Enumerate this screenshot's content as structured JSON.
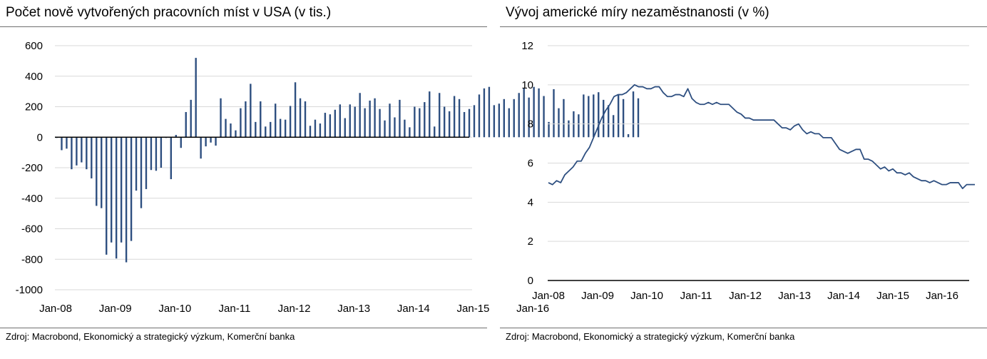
{
  "left_panel": {
    "title": "Počet nově vytvořených pracovních míst v USA (v tis.)",
    "source": "Zdroj: Macrobond, Ekonomický a strategický výzkum, Komerční banka"
  },
  "right_panel": {
    "title": "Vývoj americké míry nezaměstnanosti (v %)",
    "source": "Zdroj: Macrobond, Ekonomický a strategický výzkum, Komerční banka"
  },
  "colors": {
    "series": "#2e4f80",
    "grid": "#d9d9d9",
    "axis": "#000000",
    "rule": "#6f6f6f"
  },
  "chart_data": [
    {
      "type": "bar",
      "title": "Počet nově vytvořených pracovních míst v USA (v tis.)",
      "xlabel": "",
      "ylabel": "",
      "ylim": [
        -1000,
        600
      ],
      "yticks": [
        600,
        400,
        200,
        0,
        -200,
        -400,
        -600,
        -800,
        -1000
      ],
      "ytick_labels": [
        "600",
        "400",
        "200",
        "0",
        "-200",
        "-400",
        "-600",
        "-800",
        "-1000"
      ],
      "xticks": [
        "Jan-08",
        "Jan-09",
        "Jan-10",
        "Jan-11",
        "Jan-12",
        "Jan-13",
        "Jan-14",
        "Jan-15",
        "Jan-16"
      ],
      "grid": true,
      "frequency": "monthly",
      "start": "Jan-08",
      "values": [
        -5,
        -85,
        -75,
        -210,
        -185,
        -165,
        -210,
        -270,
        -450,
        -465,
        -770,
        -690,
        -795,
        -690,
        -820,
        -680,
        -350,
        -465,
        -340,
        -215,
        -220,
        -200,
        -5,
        -275,
        15,
        -70,
        165,
        245,
        520,
        -140,
        -60,
        -35,
        -55,
        255,
        120,
        90,
        45,
        190,
        235,
        350,
        100,
        235,
        70,
        100,
        220,
        120,
        115,
        205,
        360,
        255,
        235,
        75,
        115,
        90,
        160,
        150,
        180,
        215,
        125,
        215,
        200,
        290,
        190,
        240,
        255,
        185,
        110,
        220,
        130,
        245,
        115,
        65,
        200,
        190,
        230,
        300,
        70,
        290,
        200,
        170,
        270,
        250,
        165,
        185,
        210,
        280,
        320,
        330,
        210,
        220,
        250,
        190,
        250,
        290,
        320,
        260,
        330,
        320,
        270,
        100,
        315,
        190,
        250,
        110,
        170,
        150,
        280,
        270,
        280,
        295,
        245,
        210,
        145,
        275,
        250,
        20,
        300,
        255
      ]
    },
    {
      "type": "line",
      "title": "Vývoj americké míry nezaměstnanosti (v %)",
      "xlabel": "",
      "ylabel": "",
      "ylim": [
        0,
        12
      ],
      "yticks": [
        12,
        10,
        8,
        6,
        4,
        2,
        0
      ],
      "ytick_labels": [
        "12",
        "10",
        "8",
        "6",
        "4",
        "2",
        "0"
      ],
      "xticks": [
        "Jan-08",
        "Jan-09",
        "Jan-10",
        "Jan-11",
        "Jan-12",
        "Jan-13",
        "Jan-14",
        "Jan-15",
        "Jan-16"
      ],
      "grid": true,
      "frequency": "monthly",
      "start": "Jan-08",
      "series": [
        {
          "values": [
            5.0,
            4.9,
            5.1,
            5.0,
            5.4,
            5.6,
            5.8,
            6.1,
            6.1,
            6.5,
            6.8,
            7.3,
            7.8,
            8.3,
            8.7,
            9.0,
            9.4,
            9.5,
            9.5,
            9.6,
            9.8,
            10.0,
            9.9,
            9.9,
            9.8,
            9.8,
            9.9,
            9.9,
            9.6,
            9.4,
            9.4,
            9.5,
            9.5,
            9.4,
            9.8,
            9.3,
            9.1,
            9.0,
            9.0,
            9.1,
            9.0,
            9.1,
            9.0,
            9.0,
            9.0,
            8.8,
            8.6,
            8.5,
            8.3,
            8.3,
            8.2,
            8.2,
            8.2,
            8.2,
            8.2,
            8.2,
            8.0,
            7.8,
            7.8,
            7.7,
            7.9,
            8.0,
            7.7,
            7.5,
            7.6,
            7.5,
            7.5,
            7.3,
            7.3,
            7.3,
            7.0,
            6.7,
            6.6,
            6.5,
            6.6,
            6.7,
            6.7,
            6.2,
            6.2,
            6.1,
            5.9,
            5.7,
            5.8,
            5.6,
            5.7,
            5.5,
            5.5,
            5.4,
            5.5,
            5.3,
            5.2,
            5.1,
            5.1,
            5.0,
            5.1,
            5.0,
            4.9,
            4.9,
            5.0,
            5.0,
            5.0,
            4.7,
            4.9,
            4.9,
            4.9
          ]
        }
      ]
    }
  ]
}
